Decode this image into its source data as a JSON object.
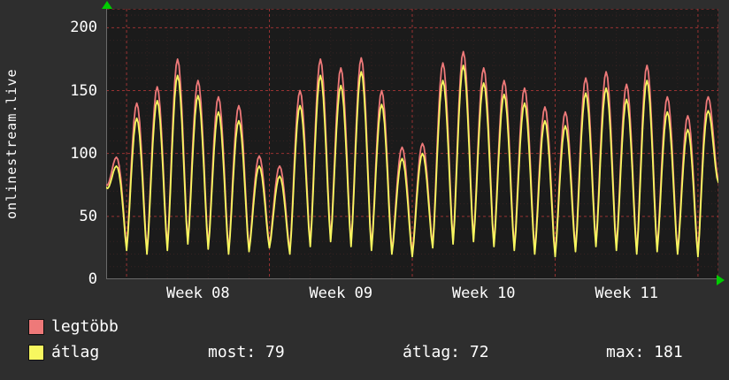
{
  "app": {
    "watermark": "onlinestream.live"
  },
  "chart_data": {
    "type": "line",
    "title": "",
    "xlabel": "",
    "ylabel": "",
    "ylim": [
      0,
      215
    ],
    "yticks": [
      0,
      50,
      100,
      150,
      200
    ],
    "x_unit": "days",
    "days": 30,
    "grid": true,
    "grid_color": "#ff4646",
    "plot_background": "#1b1b1b",
    "legend_position": "bottom",
    "week_boundaries": [
      1,
      8,
      15,
      22,
      29
    ],
    "week_labels": [
      {
        "label": "Week 08",
        "day": 4.5
      },
      {
        "label": "Week 09",
        "day": 11.5
      },
      {
        "label": "Week 10",
        "day": 18.5
      },
      {
        "label": "Week 11",
        "day": 25.5
      }
    ],
    "series": [
      {
        "name": "legtöbb",
        "color": "#ee7979",
        "day_peaks": [
          97,
          140,
          153,
          175,
          158,
          145,
          138,
          98,
          90,
          150,
          175,
          168,
          176,
          150,
          105,
          108,
          172,
          181,
          168,
          158,
          152,
          137,
          133,
          160,
          165,
          155,
          170,
          145,
          130,
          145
        ],
        "day_troughs": [
          75,
          25,
          22,
          25,
          30,
          26,
          22,
          24,
          27,
          22,
          28,
          32,
          28,
          25,
          22,
          20,
          27,
          30,
          32,
          28,
          25,
          22,
          20,
          24,
          28,
          25,
          22,
          24,
          22,
          20,
          79
        ]
      },
      {
        "name": "átlag",
        "color": "#f7f75f",
        "day_peaks": [
          90,
          128,
          142,
          162,
          146,
          133,
          126,
          90,
          82,
          138,
          162,
          154,
          165,
          139,
          96,
          100,
          158,
          170,
          156,
          147,
          140,
          126,
          122,
          148,
          152,
          143,
          158,
          133,
          119,
          134
        ],
        "day_troughs": [
          73,
          23,
          20,
          23,
          28,
          24,
          20,
          22,
          25,
          20,
          26,
          30,
          26,
          23,
          20,
          18,
          25,
          28,
          30,
          26,
          23,
          20,
          18,
          22,
          26,
          23,
          20,
          22,
          20,
          18,
          77
        ]
      }
    ],
    "summary": {
      "most": 79,
      "atlag": 72,
      "max": 181
    }
  },
  "legend": {
    "items": [
      {
        "label": "legtöbb",
        "color": "#ee7979"
      },
      {
        "label": "átlag",
        "color": "#f7f75f"
      }
    ],
    "stats": [
      "most: 79",
      "átlag: 72",
      "max: 181"
    ]
  },
  "axis": {
    "arrow_color": "#00cc00"
  }
}
